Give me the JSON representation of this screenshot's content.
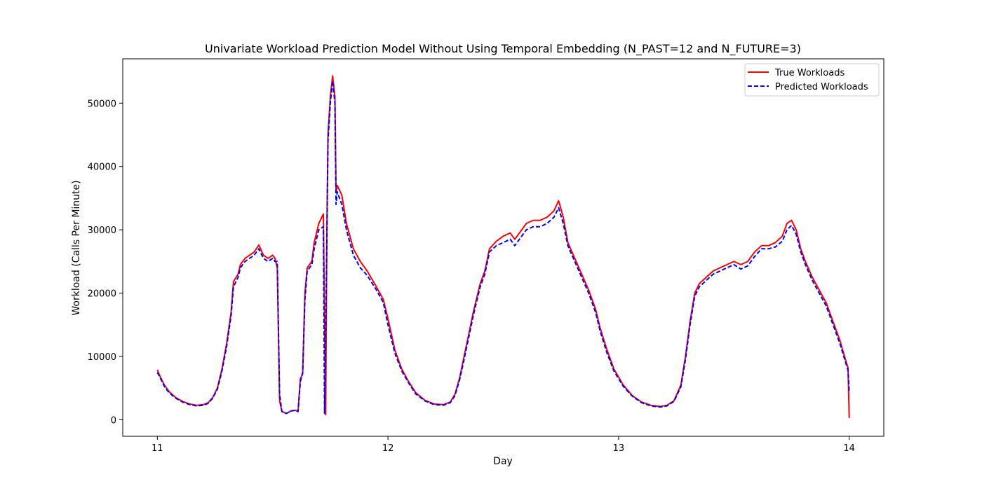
{
  "chart_data": {
    "type": "line",
    "title": "Univariate Workload Prediction Model Without Using Temporal Embedding (N_PAST=12 and N_FUTURE=3)",
    "xlabel": "Day",
    "ylabel": "Workload (Calls Per Minute)",
    "xlim": [
      10.85,
      14.15
    ],
    "ylim": [
      -2600,
      57000
    ],
    "x_ticks": [
      11,
      12,
      13,
      14
    ],
    "x_tick_labels": [
      "11",
      "12",
      "13",
      "14"
    ],
    "y_ticks": [
      0,
      10000,
      20000,
      30000,
      40000,
      50000
    ],
    "y_tick_labels": [
      "0",
      "10000",
      "20000",
      "30000",
      "40000",
      "50000"
    ],
    "grid": false,
    "legend_position": "top-right",
    "series": [
      {
        "name": "True Workloads",
        "color": "#ff0000",
        "dash": "solid",
        "points": [
          [
            11.0,
            7900
          ],
          [
            11.01,
            7000
          ],
          [
            11.03,
            5500
          ],
          [
            11.05,
            4500
          ],
          [
            11.08,
            3500
          ],
          [
            11.11,
            2900
          ],
          [
            11.14,
            2500
          ],
          [
            11.17,
            2300
          ],
          [
            11.2,
            2400
          ],
          [
            11.22,
            2700
          ],
          [
            11.24,
            3500
          ],
          [
            11.26,
            5000
          ],
          [
            11.28,
            8000
          ],
          [
            11.3,
            12000
          ],
          [
            11.32,
            17000
          ],
          [
            11.33,
            21800
          ],
          [
            11.35,
            23000
          ],
          [
            11.36,
            24500
          ],
          [
            11.38,
            25500
          ],
          [
            11.4,
            26000
          ],
          [
            11.42,
            26500
          ],
          [
            11.44,
            27600
          ],
          [
            11.46,
            26000
          ],
          [
            11.48,
            25500
          ],
          [
            11.5,
            26000
          ],
          [
            11.51,
            25500
          ],
          [
            11.52,
            24000
          ],
          [
            11.53,
            3000
          ],
          [
            11.54,
            1300
          ],
          [
            11.56,
            1000
          ],
          [
            11.58,
            1400
          ],
          [
            11.6,
            1500
          ],
          [
            11.61,
            1300
          ],
          [
            11.62,
            6500
          ],
          [
            11.63,
            7200
          ],
          [
            11.64,
            20000
          ],
          [
            11.65,
            24000
          ],
          [
            11.66,
            24500
          ],
          [
            11.67,
            25000
          ],
          [
            11.68,
            28000
          ],
          [
            11.7,
            31000
          ],
          [
            11.72,
            32500
          ],
          [
            11.73,
            800
          ],
          [
            11.735,
            30000
          ],
          [
            11.74,
            45000
          ],
          [
            11.75,
            51000
          ],
          [
            11.76,
            54300
          ],
          [
            11.77,
            51000
          ],
          [
            11.775,
            36000
          ],
          [
            11.78,
            37000
          ],
          [
            11.8,
            35500
          ],
          [
            11.82,
            31000
          ],
          [
            11.85,
            27000
          ],
          [
            11.88,
            25000
          ],
          [
            11.91,
            23500
          ],
          [
            11.95,
            21000
          ],
          [
            11.98,
            19000
          ],
          [
            12.0,
            16000
          ],
          [
            12.03,
            11000
          ],
          [
            12.06,
            8000
          ],
          [
            12.09,
            6000
          ],
          [
            12.12,
            4300
          ],
          [
            12.16,
            3100
          ],
          [
            12.2,
            2500
          ],
          [
            12.24,
            2400
          ],
          [
            12.27,
            2800
          ],
          [
            12.29,
            4000
          ],
          [
            12.31,
            6500
          ],
          [
            12.33,
            10000
          ],
          [
            12.35,
            13500
          ],
          [
            12.37,
            17000
          ],
          [
            12.4,
            21500
          ],
          [
            12.42,
            23500
          ],
          [
            12.44,
            27000
          ],
          [
            12.47,
            28200
          ],
          [
            12.5,
            29000
          ],
          [
            12.53,
            29500
          ],
          [
            12.55,
            28500
          ],
          [
            12.57,
            29500
          ],
          [
            12.6,
            31000
          ],
          [
            12.63,
            31500
          ],
          [
            12.66,
            31500
          ],
          [
            12.69,
            32000
          ],
          [
            12.72,
            33000
          ],
          [
            12.74,
            34600
          ],
          [
            12.76,
            32000
          ],
          [
            12.78,
            28000
          ],
          [
            12.81,
            25500
          ],
          [
            12.84,
            23000
          ],
          [
            12.87,
            20500
          ],
          [
            12.9,
            17500
          ],
          [
            12.92,
            14500
          ],
          [
            12.95,
            11000
          ],
          [
            12.98,
            8000
          ],
          [
            13.02,
            5500
          ],
          [
            13.06,
            3800
          ],
          [
            13.1,
            2800
          ],
          [
            13.14,
            2300
          ],
          [
            13.18,
            2100
          ],
          [
            13.21,
            2300
          ],
          [
            13.24,
            3000
          ],
          [
            13.27,
            5500
          ],
          [
            13.29,
            10000
          ],
          [
            13.31,
            15500
          ],
          [
            13.33,
            20000
          ],
          [
            13.35,
            21500
          ],
          [
            13.38,
            22500
          ],
          [
            13.41,
            23500
          ],
          [
            13.44,
            24000
          ],
          [
            13.47,
            24500
          ],
          [
            13.5,
            25000
          ],
          [
            13.53,
            24500
          ],
          [
            13.56,
            25000
          ],
          [
            13.59,
            26500
          ],
          [
            13.62,
            27500
          ],
          [
            13.65,
            27500
          ],
          [
            13.68,
            28000
          ],
          [
            13.71,
            29000
          ],
          [
            13.73,
            31000
          ],
          [
            13.75,
            31500
          ],
          [
            13.77,
            30000
          ],
          [
            13.79,
            27000
          ],
          [
            13.81,
            25000
          ],
          [
            13.84,
            22500
          ],
          [
            13.87,
            20500
          ],
          [
            13.9,
            18500
          ],
          [
            13.92,
            16500
          ],
          [
            13.94,
            14500
          ],
          [
            13.96,
            12500
          ],
          [
            13.98,
            10000
          ],
          [
            13.995,
            8200
          ],
          [
            14.0,
            300
          ]
        ]
      },
      {
        "name": "Predicted Workloads",
        "color": "#0000ff",
        "dash": "dashed",
        "points": [
          [
            11.0,
            7500
          ],
          [
            11.01,
            6800
          ],
          [
            11.03,
            5300
          ],
          [
            11.05,
            4300
          ],
          [
            11.08,
            3400
          ],
          [
            11.11,
            2800
          ],
          [
            11.14,
            2400
          ],
          [
            11.17,
            2200
          ],
          [
            11.2,
            2300
          ],
          [
            11.22,
            2600
          ],
          [
            11.24,
            3400
          ],
          [
            11.26,
            4800
          ],
          [
            11.28,
            7700
          ],
          [
            11.3,
            11500
          ],
          [
            11.32,
            16500
          ],
          [
            11.33,
            21000
          ],
          [
            11.35,
            22500
          ],
          [
            11.36,
            24000
          ],
          [
            11.38,
            25000
          ],
          [
            11.4,
            25500
          ],
          [
            11.42,
            26000
          ],
          [
            11.44,
            27000
          ],
          [
            11.46,
            25500
          ],
          [
            11.48,
            25000
          ],
          [
            11.5,
            25500
          ],
          [
            11.51,
            25000
          ],
          [
            11.52,
            25000
          ],
          [
            11.53,
            4000
          ],
          [
            11.54,
            1300
          ],
          [
            11.56,
            1000
          ],
          [
            11.58,
            1400
          ],
          [
            11.6,
            1500
          ],
          [
            11.61,
            1300
          ],
          [
            11.62,
            6000
          ],
          [
            11.63,
            7500
          ],
          [
            11.64,
            19000
          ],
          [
            11.65,
            23500
          ],
          [
            11.66,
            24000
          ],
          [
            11.67,
            24500
          ],
          [
            11.68,
            27000
          ],
          [
            11.7,
            30000
          ],
          [
            11.72,
            30500
          ],
          [
            11.725,
            1000
          ],
          [
            11.735,
            28000
          ],
          [
            11.74,
            44000
          ],
          [
            11.75,
            50000
          ],
          [
            11.76,
            53500
          ],
          [
            11.77,
            50000
          ],
          [
            11.775,
            34000
          ],
          [
            11.78,
            36000
          ],
          [
            11.8,
            34000
          ],
          [
            11.82,
            30000
          ],
          [
            11.85,
            26000
          ],
          [
            11.88,
            24000
          ],
          [
            11.91,
            22800
          ],
          [
            11.95,
            20500
          ],
          [
            11.98,
            18500
          ],
          [
            12.0,
            15000
          ],
          [
            12.03,
            10500
          ],
          [
            12.06,
            7700
          ],
          [
            12.09,
            5800
          ],
          [
            12.12,
            4100
          ],
          [
            12.16,
            3000
          ],
          [
            12.2,
            2400
          ],
          [
            12.24,
            2300
          ],
          [
            12.27,
            2700
          ],
          [
            12.29,
            3800
          ],
          [
            12.31,
            6200
          ],
          [
            12.33,
            9500
          ],
          [
            12.35,
            13000
          ],
          [
            12.37,
            16500
          ],
          [
            12.4,
            21000
          ],
          [
            12.42,
            23000
          ],
          [
            12.44,
            26500
          ],
          [
            12.47,
            27500
          ],
          [
            12.5,
            28000
          ],
          [
            12.53,
            28500
          ],
          [
            12.55,
            27500
          ],
          [
            12.57,
            28500
          ],
          [
            12.6,
            30000
          ],
          [
            12.63,
            30500
          ],
          [
            12.66,
            30500
          ],
          [
            12.69,
            31000
          ],
          [
            12.72,
            32000
          ],
          [
            12.74,
            33500
          ],
          [
            12.76,
            31000
          ],
          [
            12.78,
            27500
          ],
          [
            12.81,
            25000
          ],
          [
            12.84,
            22500
          ],
          [
            12.87,
            20000
          ],
          [
            12.9,
            17000
          ],
          [
            12.92,
            14000
          ],
          [
            12.95,
            10500
          ],
          [
            12.98,
            7700
          ],
          [
            13.02,
            5300
          ],
          [
            13.06,
            3700
          ],
          [
            13.1,
            2700
          ],
          [
            13.14,
            2200
          ],
          [
            13.18,
            2000
          ],
          [
            13.21,
            2200
          ],
          [
            13.24,
            2900
          ],
          [
            13.27,
            5200
          ],
          [
            13.29,
            9500
          ],
          [
            13.31,
            15000
          ],
          [
            13.33,
            19500
          ],
          [
            13.35,
            21000
          ],
          [
            13.38,
            22000
          ],
          [
            13.41,
            23000
          ],
          [
            13.44,
            23500
          ],
          [
            13.47,
            24000
          ],
          [
            13.5,
            24500
          ],
          [
            13.53,
            23800
          ],
          [
            13.56,
            24300
          ],
          [
            13.59,
            25800
          ],
          [
            13.62,
            27000
          ],
          [
            13.65,
            27000
          ],
          [
            13.68,
            27300
          ],
          [
            13.71,
            28200
          ],
          [
            13.73,
            30000
          ],
          [
            13.75,
            30700
          ],
          [
            13.77,
            29300
          ],
          [
            13.79,
            26500
          ],
          [
            13.81,
            24500
          ],
          [
            13.84,
            22000
          ],
          [
            13.87,
            20000
          ],
          [
            13.9,
            18000
          ],
          [
            13.92,
            16000
          ],
          [
            13.94,
            14000
          ],
          [
            13.96,
            12000
          ],
          [
            13.98,
            9600
          ],
          [
            13.995,
            7800
          ],
          [
            14.0,
            4300
          ]
        ]
      }
    ]
  }
}
